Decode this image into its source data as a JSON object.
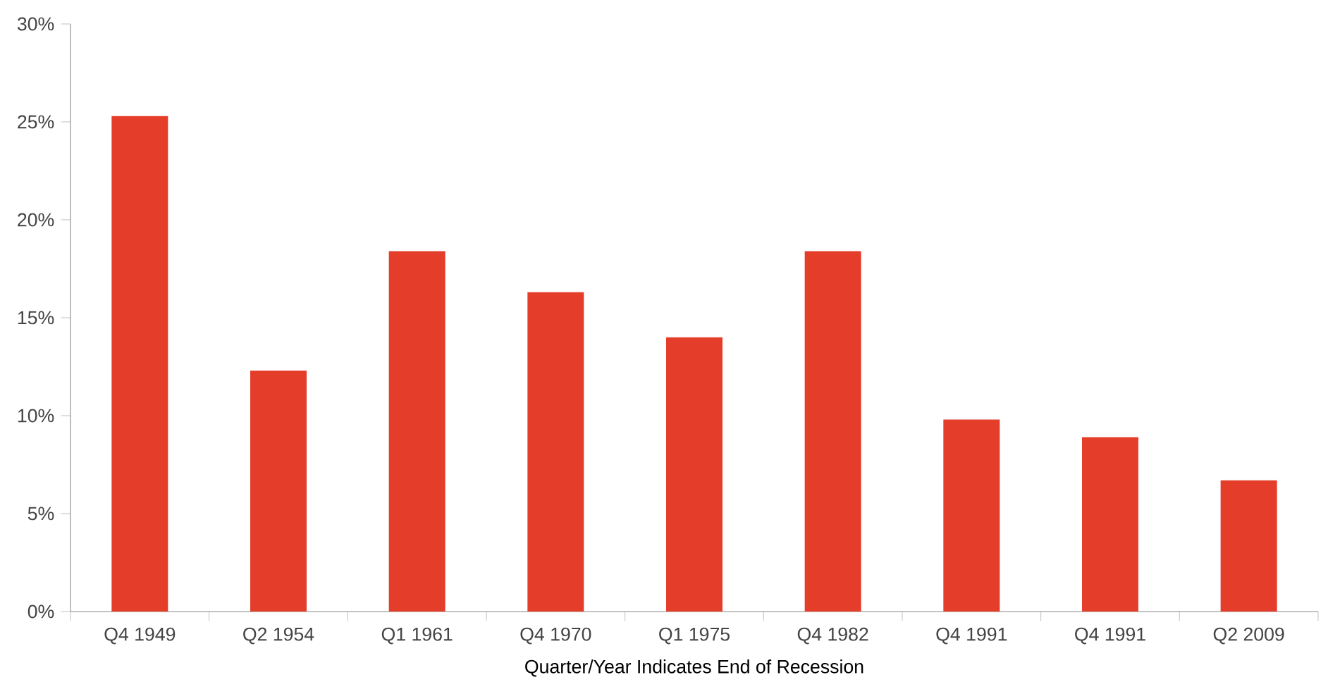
{
  "chart_data": {
    "type": "bar",
    "xlabel": "Quarter/Year Indicates End of Recession",
    "categories": [
      "Q4 1949",
      "Q2 1954",
      "Q1 1961",
      "Q4 1970",
      "Q1 1975",
      "Q4 1982",
      "Q4 1991",
      "Q4 1991",
      "Q2 2009"
    ],
    "values": [
      25.3,
      12.3,
      18.4,
      16.3,
      14.0,
      18.4,
      9.8,
      8.9,
      6.7
    ],
    "color": "#e43d2a",
    "ylim": [
      0,
      30
    ],
    "yticks": [
      {
        "value": 0,
        "label": "0%"
      },
      {
        "value": 5,
        "label": "5%"
      },
      {
        "value": 10,
        "label": "10%"
      },
      {
        "value": 15,
        "label": "15%"
      },
      {
        "value": 20,
        "label": "20%"
      },
      {
        "value": 25,
        "label": "25%"
      },
      {
        "value": 30,
        "label": "30%"
      }
    ],
    "grid": false
  }
}
